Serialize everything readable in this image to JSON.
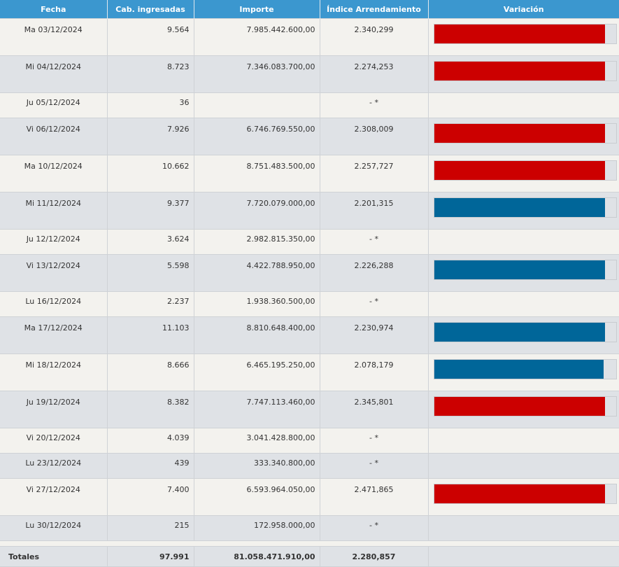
{
  "colors": {
    "header_bg": "#3b97cf",
    "bar_up": "#cc0000",
    "bar_down": "#006699",
    "bar_track": "#dfe2e6"
  },
  "headers": {
    "fecha": "Fecha",
    "cab": "Cab. ingresadas",
    "importe": "Importe",
    "indice": "Índice Arrendamiento",
    "variacion": "Variación"
  },
  "rows": [
    {
      "fecha": "Ma 03/12/2024",
      "cab": "9.564",
      "importe": "7.985.442.600,00",
      "indice": "2.340,299",
      "bar": "up",
      "fill": 0.94
    },
    {
      "fecha": "Mi 04/12/2024",
      "cab": "8.723",
      "importe": "7.346.083.700,00",
      "indice": "2.274,253",
      "bar": "up",
      "fill": 0.94
    },
    {
      "fecha": "Ju 05/12/2024",
      "cab": "36",
      "importe": "",
      "indice": "- *",
      "bar": "none",
      "fill": 0
    },
    {
      "fecha": "Vi 06/12/2024",
      "cab": "7.926",
      "importe": "6.746.769.550,00",
      "indice": "2.308,009",
      "bar": "up",
      "fill": 0.94
    },
    {
      "fecha": "Ma 10/12/2024",
      "cab": "10.662",
      "importe": "8.751.483.500,00",
      "indice": "2.257,727",
      "bar": "up",
      "fill": 0.94
    },
    {
      "fecha": "Mi 11/12/2024",
      "cab": "9.377",
      "importe": "7.720.079.000,00",
      "indice": "2.201,315",
      "bar": "down",
      "fill": 0.94
    },
    {
      "fecha": "Ju 12/12/2024",
      "cab": "3.624",
      "importe": "2.982.815.350,00",
      "indice": "- *",
      "bar": "none",
      "fill": 0
    },
    {
      "fecha": "Vi 13/12/2024",
      "cab": "5.598",
      "importe": "4.422.788.950,00",
      "indice": "2.226,288",
      "bar": "down",
      "fill": 0.94
    },
    {
      "fecha": "Lu 16/12/2024",
      "cab": "2.237",
      "importe": "1.938.360.500,00",
      "indice": "- *",
      "bar": "none",
      "fill": 0
    },
    {
      "fecha": "Ma 17/12/2024",
      "cab": "11.103",
      "importe": "8.810.648.400,00",
      "indice": "2.230,974",
      "bar": "down",
      "fill": 0.94
    },
    {
      "fecha": "Mi 18/12/2024",
      "cab": "8.666",
      "importe": "6.465.195.250,00",
      "indice": "2.078,179",
      "bar": "down",
      "fill": 0.93
    },
    {
      "fecha": "Ju 19/12/2024",
      "cab": "8.382",
      "importe": "7.747.113.460,00",
      "indice": "2.345,801",
      "bar": "up",
      "fill": 0.94
    },
    {
      "fecha": "Vi 20/12/2024",
      "cab": "4.039",
      "importe": "3.041.428.800,00",
      "indice": "- *",
      "bar": "none",
      "fill": 0
    },
    {
      "fecha": "Lu 23/12/2024",
      "cab": "439",
      "importe": "333.340.800,00",
      "indice": "- *",
      "bar": "none",
      "fill": 0
    },
    {
      "fecha": "Vi 27/12/2024",
      "cab": "7.400",
      "importe": "6.593.964.050,00",
      "indice": "2.471,865",
      "bar": "up",
      "fill": 0.94
    },
    {
      "fecha": "Lu 30/12/2024",
      "cab": "215",
      "importe": "172.958.000,00",
      "indice": "- *",
      "bar": "none",
      "fill": 0
    }
  ],
  "totals": {
    "label": "Totales",
    "cab": "97.991",
    "importe": "81.058.471.910,00",
    "indice": "2.280,857"
  }
}
